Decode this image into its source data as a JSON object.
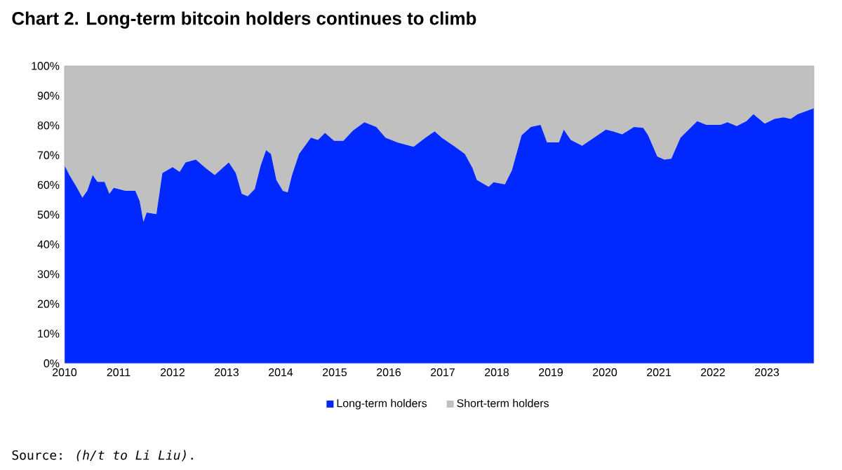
{
  "chart_data": {
    "type": "area",
    "title": "Chart 2. Long-term bitcoin holders continues to climb",
    "stacked": true,
    "legend": "bottom",
    "xlim": [
      2010,
      2023.87
    ],
    "ylim": [
      0,
      100
    ],
    "xticks": [
      2010,
      2011,
      2012,
      2013,
      2014,
      2015,
      2016,
      2017,
      2018,
      2019,
      2020,
      2021,
      2022,
      2023
    ],
    "yticks": [
      {
        "value": 0,
        "label": "0%"
      },
      {
        "value": 10,
        "label": "10%"
      },
      {
        "value": 20,
        "label": "20%"
      },
      {
        "value": 30,
        "label": "30%"
      },
      {
        "value": 40,
        "label": "40%"
      },
      {
        "value": 50,
        "label": "50%"
      },
      {
        "value": 60,
        "label": "60%"
      },
      {
        "value": 70,
        "label": "70%"
      },
      {
        "value": 80,
        "label": "80%"
      },
      {
        "value": 90,
        "label": "90%"
      },
      {
        "value": 100,
        "label": "100%"
      }
    ],
    "x": [
      2010.0,
      2010.09,
      2010.22,
      2010.33,
      2010.42,
      2010.52,
      2010.61,
      2010.74,
      2010.83,
      2010.91,
      2011.13,
      2011.31,
      2011.39,
      2011.46,
      2011.52,
      2011.7,
      2011.81,
      2012.0,
      2012.13,
      2012.24,
      2012.43,
      2012.61,
      2012.78,
      2013.04,
      2013.17,
      2013.28,
      2013.39,
      2013.52,
      2013.63,
      2013.73,
      2013.82,
      2013.92,
      2014.04,
      2014.13,
      2014.21,
      2014.34,
      2014.56,
      2014.69,
      2014.82,
      2014.99,
      2015.16,
      2015.34,
      2015.55,
      2015.77,
      2015.94,
      2016.16,
      2016.46,
      2016.68,
      2016.85,
      2016.98,
      2017.2,
      2017.41,
      2017.55,
      2017.63,
      2017.85,
      2017.94,
      2018.15,
      2018.28,
      2018.46,
      2018.63,
      2018.81,
      2018.93,
      2019.15,
      2019.24,
      2019.37,
      2019.58,
      2019.8,
      2020.02,
      2020.15,
      2020.32,
      2020.54,
      2020.71,
      2020.8,
      2020.97,
      2021.1,
      2021.23,
      2021.4,
      2021.71,
      2021.88,
      2022.14,
      2022.27,
      2022.44,
      2022.62,
      2022.75,
      2022.96,
      2023.14,
      2023.31,
      2023.44,
      2023.57,
      2023.74,
      2023.87
    ],
    "series": [
      {
        "name": "Long-term holders",
        "color": "#0028ff",
        "values": [
          66.5,
          63.3,
          59.4,
          55.7,
          58,
          63.3,
          61,
          61,
          57,
          59,
          58,
          58,
          54.6,
          47.6,
          50.7,
          50.2,
          64,
          66,
          64.4,
          67.6,
          68.5,
          65.7,
          63.3,
          67.6,
          64,
          57,
          56.2,
          58.6,
          66.5,
          71.7,
          70.4,
          61.7,
          58,
          57.5,
          63.3,
          70.4,
          75.9,
          75.1,
          77.5,
          74.8,
          74.8,
          78.3,
          81.1,
          79.5,
          75.9,
          74.3,
          72.8,
          75.9,
          78,
          75.9,
          73.2,
          70.4,
          65.7,
          61.7,
          59.4,
          60.9,
          60.2,
          64.9,
          76.7,
          79.5,
          80.2,
          74.3,
          74.3,
          78.6,
          75.1,
          73.2,
          75.9,
          78.6,
          78,
          77,
          79.5,
          79.2,
          76.7,
          69.6,
          68.5,
          68.8,
          75.9,
          81.4,
          80.2,
          80.2,
          81.1,
          79.8,
          81.4,
          83.8,
          80.6,
          82.2,
          82.7,
          82.2,
          83.8,
          84.9,
          85.8
        ]
      },
      {
        "name": "Short-term holders",
        "color": "#c0c0c0",
        "values": [
          33.5,
          36.7,
          40.6,
          44.3,
          42,
          36.7,
          39,
          39,
          43,
          41,
          42,
          42,
          45.4,
          52.4,
          49.3,
          49.8,
          36,
          34,
          35.6,
          32.4,
          31.5,
          34.3,
          36.7,
          32.4,
          36,
          43,
          43.8,
          41.4,
          33.5,
          28.3,
          29.6,
          38.3,
          42,
          42.5,
          36.7,
          29.6,
          24.1,
          24.9,
          22.5,
          25.2,
          25.2,
          21.7,
          18.9,
          20.5,
          24.1,
          25.7,
          27.2,
          24.1,
          22,
          24.1,
          26.8,
          29.6,
          34.3,
          38.3,
          40.6,
          39.1,
          39.8,
          35.1,
          23.3,
          20.5,
          19.8,
          25.7,
          25.7,
          21.4,
          24.9,
          26.8,
          24.1,
          21.4,
          22,
          23,
          20.5,
          20.8,
          23.3,
          30.4,
          31.5,
          31.2,
          24.1,
          18.6,
          19.8,
          19.8,
          18.9,
          20.2,
          18.6,
          16.2,
          19.4,
          17.8,
          17.3,
          17.8,
          16.2,
          15.1,
          14.2
        ]
      }
    ],
    "annotations": [
      "Source: *(h/t to Li Liu)*."
    ]
  }
}
